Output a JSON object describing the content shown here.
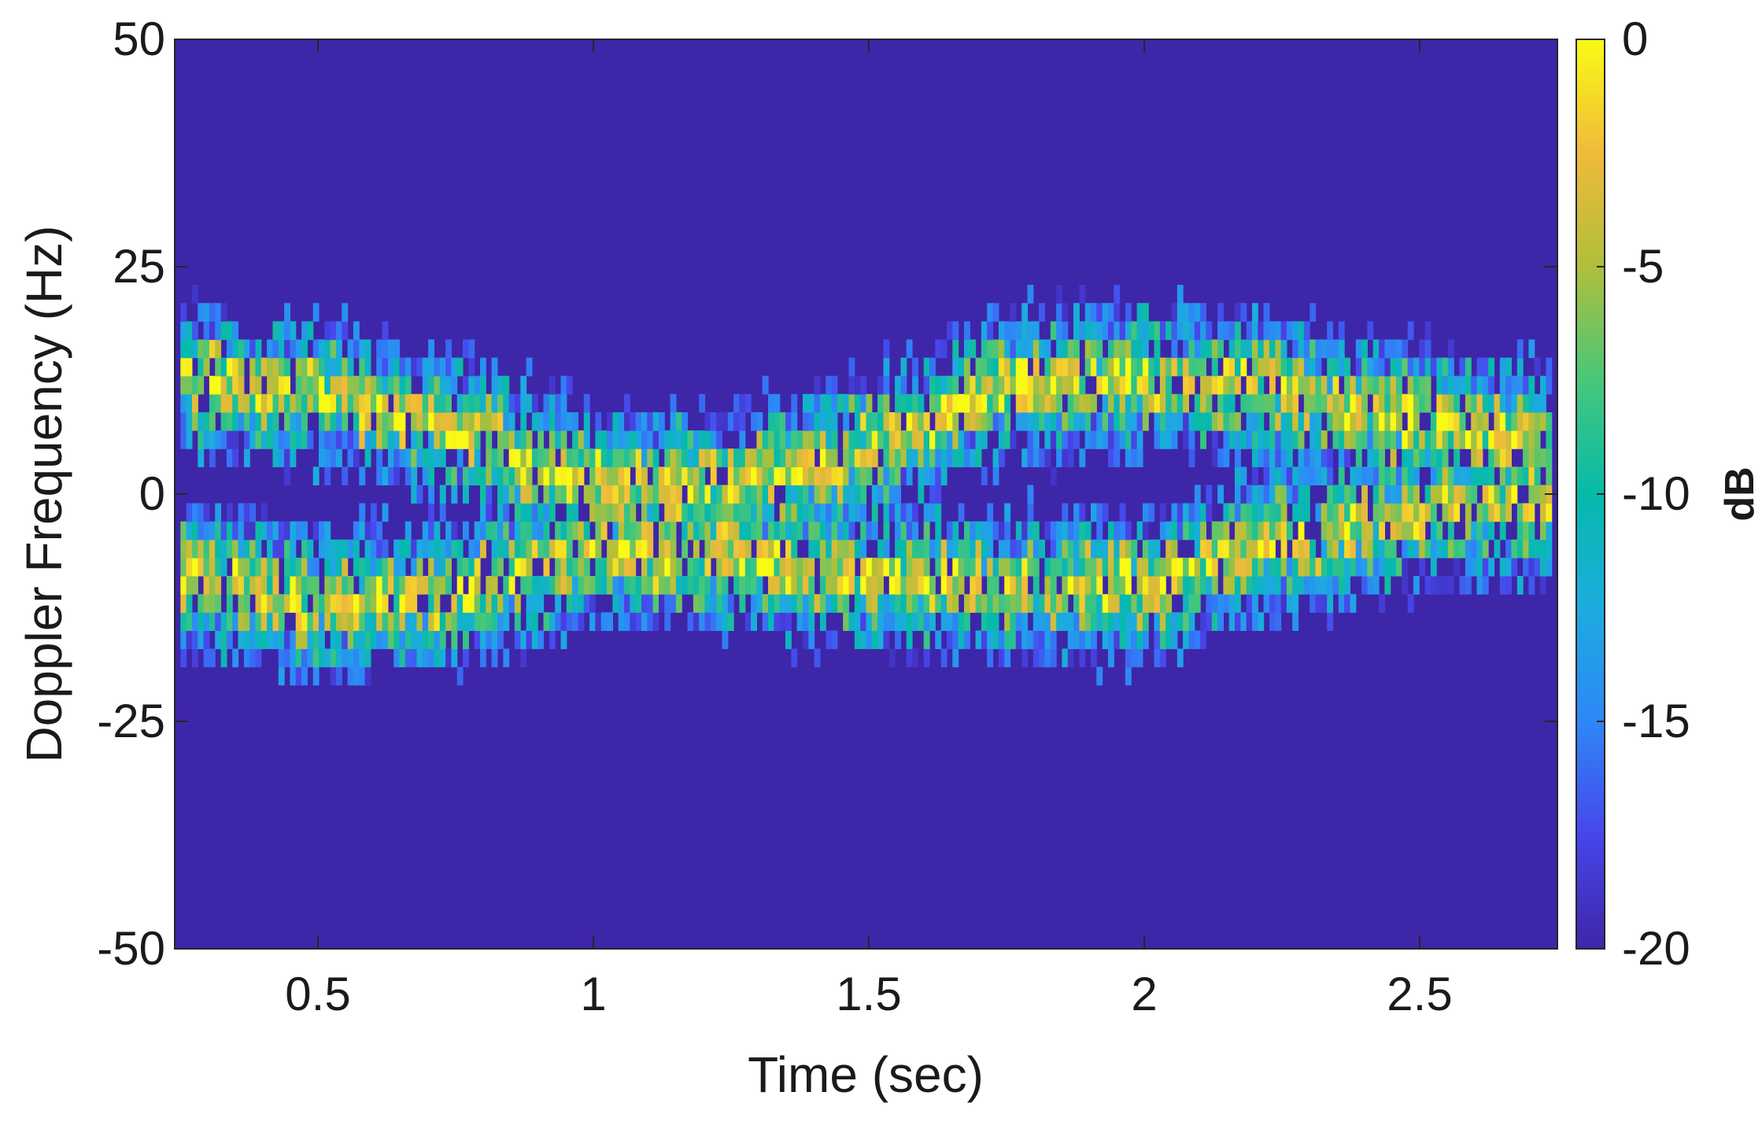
{
  "chart_data": {
    "type": "heatmap",
    "title": "",
    "xlabel": "Time (sec)",
    "ylabel": "Doppler Frequency (Hz)",
    "xlim": [
      0.24,
      2.75
    ],
    "ylim": [
      -50,
      50
    ],
    "x_ticks": [
      0.5,
      1,
      1.5,
      2,
      2.5
    ],
    "x_tick_labels": [
      "0.5",
      "1",
      "1.5",
      "2",
      "2.5"
    ],
    "y_ticks": [
      -50,
      -25,
      0,
      25,
      50
    ],
    "y_tick_labels": [
      "-50",
      "-25",
      "0",
      "25",
      "50"
    ],
    "colorbar": {
      "label": "dB",
      "limits": [
        -20,
        0
      ],
      "ticks": [
        0,
        -5,
        -10,
        -15,
        -20
      ],
      "tick_labels": [
        "0",
        "-5",
        "-10",
        "-15",
        "-20"
      ],
      "colormap": "parula"
    },
    "background_db": -20,
    "bin_width_hz": 2,
    "tracks": [
      {
        "label": "upper micro-Doppler band",
        "time": [
          0.25,
          0.5,
          0.75,
          1.0,
          1.25,
          1.5,
          1.75,
          2.0,
          2.25,
          2.5,
          2.75
        ],
        "center_hz": [
          13,
          11,
          7,
          1,
          1,
          5,
          12,
          13,
          11,
          8,
          6
        ],
        "peak_db": -2,
        "spread_hz": 9
      },
      {
        "label": "lower micro-Doppler band",
        "time": [
          0.25,
          0.5,
          0.75,
          1.0,
          1.25,
          1.5,
          1.75,
          2.0,
          2.25,
          2.5,
          2.75
        ],
        "center_hz": [
          -9,
          -12,
          -11,
          -6,
          -7,
          -9,
          -10,
          -10,
          -5,
          -2,
          -1
        ],
        "peak_db": -2,
        "spread_hz": 9
      }
    ]
  },
  "colors": {
    "colormap_stops": [
      "#3e26a8",
      "#4746eb",
      "#2e87f7",
      "#1cacdf",
      "#06baaa",
      "#47c77a",
      "#b0bf3a",
      "#f0ba3a",
      "#f9fb15"
    ],
    "background_cell": "#3e26a8",
    "axis": "#262626"
  }
}
